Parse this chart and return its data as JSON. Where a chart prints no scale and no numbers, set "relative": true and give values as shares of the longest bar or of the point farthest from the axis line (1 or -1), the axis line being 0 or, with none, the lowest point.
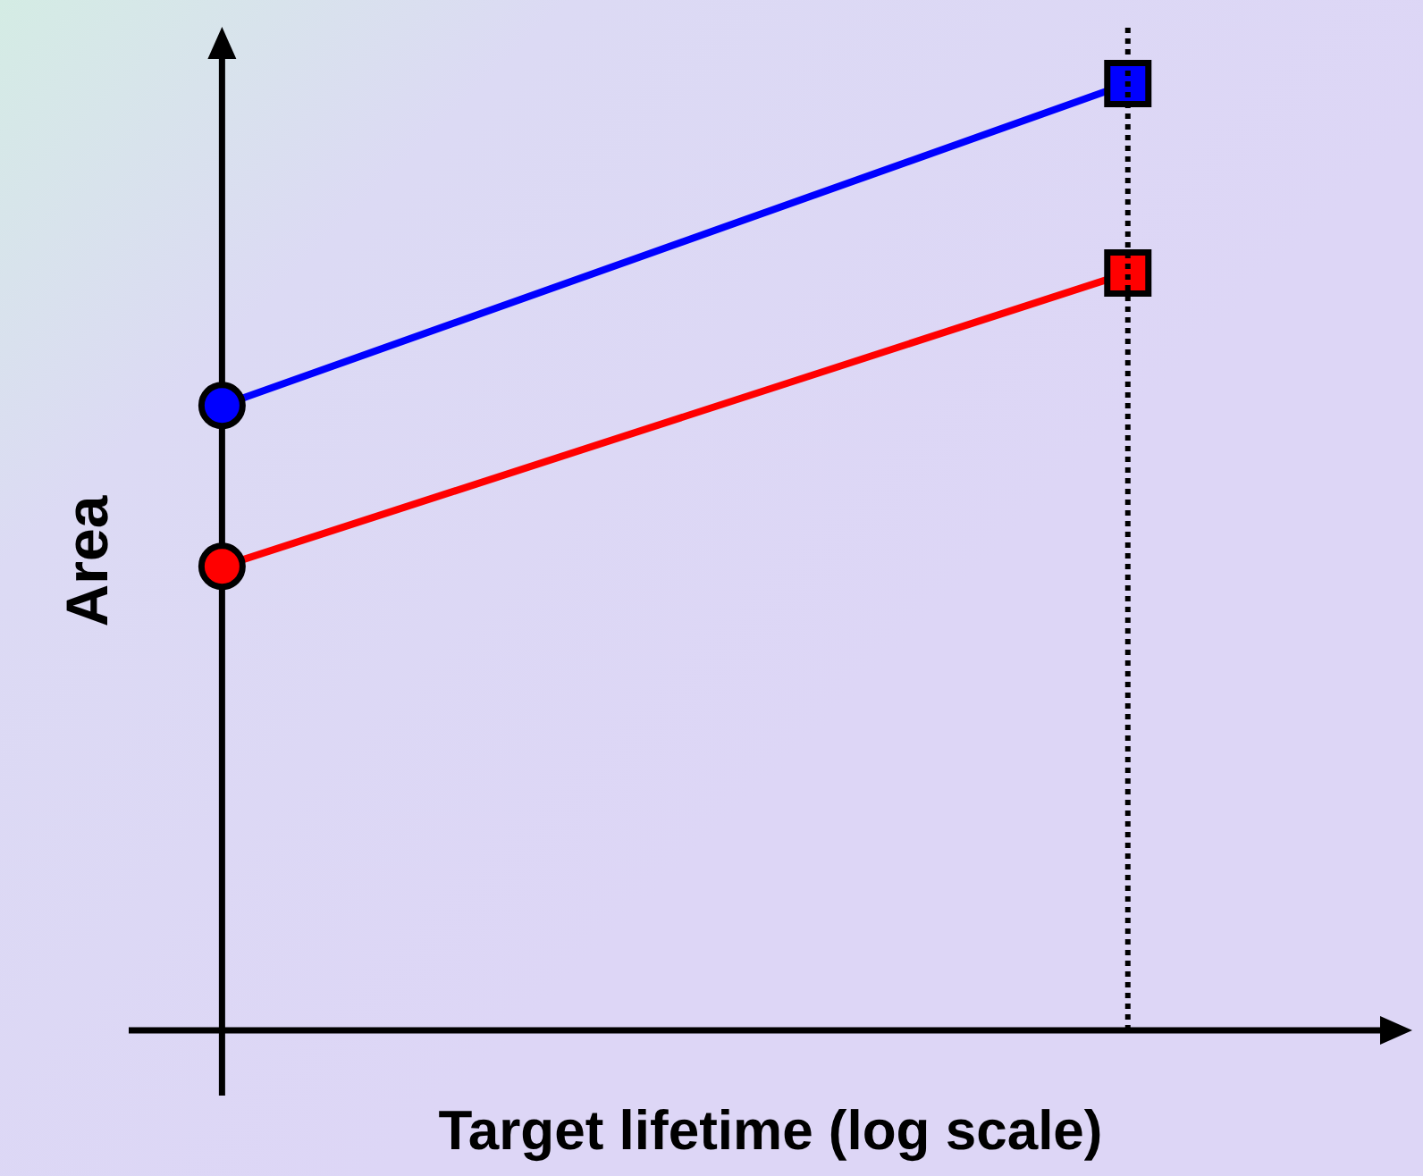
{
  "chart_data": {
    "type": "line",
    "relative": true,
    "xlabel": "Target lifetime (log scale)",
    "ylabel": "Area",
    "categories": [
      null,
      null
    ],
    "series": [
      {
        "color": "#0000ff",
        "values": [
          0.66,
          1
        ],
        "marker": [
          "circle",
          "square"
        ]
      },
      {
        "color": "#ff0000",
        "values": [
          0.49,
          0.8
        ],
        "marker": [
          "circle",
          "square"
        ]
      }
    ]
  }
}
